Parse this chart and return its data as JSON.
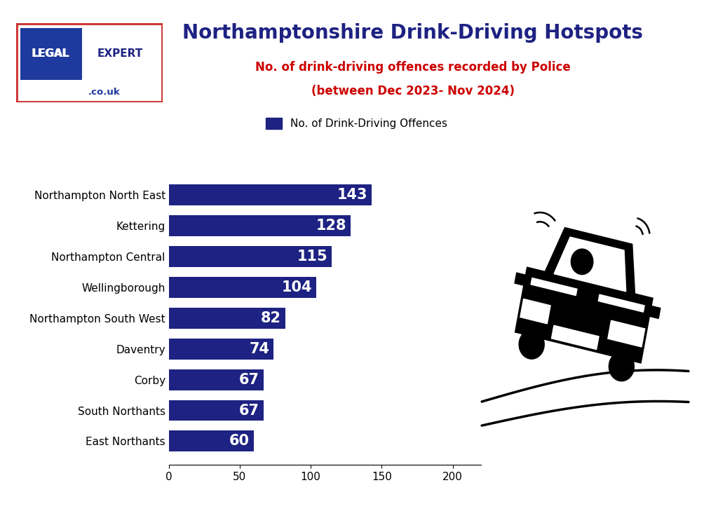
{
  "title": "Northamptonshire Drink-Driving Hotspots",
  "subtitle1": "No. of drink-driving offences recorded by Police",
  "subtitle2": "(between Dec 2023- Nov 2024)",
  "legend_label": "No. of Drink-Driving Offences",
  "categories": [
    "Northampton North East",
    "Kettering",
    "Northampton Central",
    "Wellingborough",
    "Northampton South West",
    "Daventry",
    "Corby",
    "South Northants",
    "East Northants"
  ],
  "values": [
    143,
    128,
    115,
    104,
    82,
    74,
    67,
    67,
    60
  ],
  "bar_color": "#1e2282",
  "title_color": "#1e2282",
  "subtitle_color": "#cc0000",
  "background_color": "#ffffff",
  "border_color": "#1e2282",
  "xlim": [
    0,
    220
  ],
  "xticks": [
    0,
    50,
    100,
    150,
    200
  ],
  "logo_bg": "#1e3a9e",
  "logo_expert_color": "#1e2282",
  "logo_border_color": "#cc3333",
  "logo_couk_color": "#1e3a9e"
}
